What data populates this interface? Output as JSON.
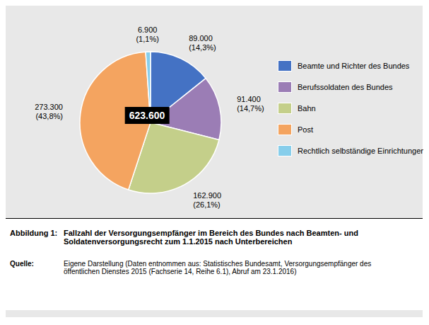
{
  "chart_data": {
    "type": "pie",
    "categories": [
      "Beamte und Richter des Bundes",
      "Berufssoldaten des Bundes",
      "Bahn",
      "Post",
      "Rechtlich selbständige Einrichtungen"
    ],
    "values": [
      89000,
      91400,
      162900,
      273300,
      6900
    ],
    "value_labels": [
      "89.000\n(14,3%)",
      "91.400\n(14,7%)",
      "162.900\n(26,1%)",
      "273.300\n(43,8%)",
      "6.900\n(1,1%)"
    ],
    "colors": [
      "#4472C4",
      "#9B7DB5",
      "#C4CF8A",
      "#F4A460",
      "#87CEEB"
    ],
    "annotations": [
      "623.600",
      "Abbildung 1:",
      "Fallzahl der Versorgungsempfänger im Bereich des Bundes nach Beamten- und\nSoldatenversorgungsrecht zum 1.1.2015 nach Unterbereichen",
      "Quelle:",
      "Eigene Darstellung (Daten entnommen aus: Statistisches Bundesamt, Versorgungsempfänger des\nöffentlichen Dienstes 2015 (Fachserie 14, Reihe 6.1), Abruf am 23.1.2016)"
    ]
  }
}
